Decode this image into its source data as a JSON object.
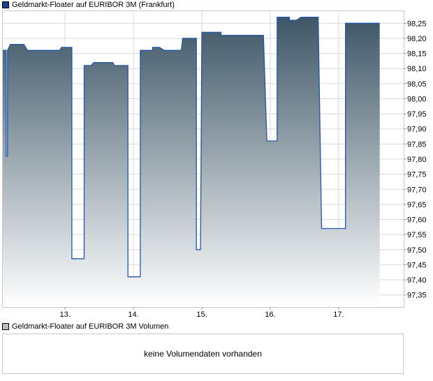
{
  "colors": {
    "series_line": "#2255aa",
    "area_top": "#3d5666",
    "area_bottom": "#ffffff",
    "grid": "#d8d8d8",
    "frame": "#c8c8c8",
    "price_swatch": "#1a3f8f",
    "volume_swatch": "#bbbbbb"
  },
  "volume_panel": {
    "legend": "Geldmarkt-Floater auf EURIBOR 3M Volumen",
    "message": "keine Volumendaten vorhanden"
  },
  "chart_data": {
    "type": "area",
    "legend": "Geldmarkt-Floater auf EURIBOR 3M (Frankfurt)",
    "x_tick_labels": [
      "13.",
      "14.",
      "15.",
      "16.",
      "17."
    ],
    "y_tick_labels": [
      "98,25",
      "98,20",
      "98,15",
      "98,10",
      "98,05",
      "98,00",
      "97,95",
      "97,90",
      "97,85",
      "97,80",
      "97,75",
      "97,70",
      "97,65",
      "97,60",
      "97,55",
      "97,50",
      "97,45",
      "97,40",
      "97,35"
    ],
    "ylim": [
      97.31,
      98.29
    ],
    "xlim": [
      12.08,
      17.95
    ],
    "grid": true,
    "x": [
      12.08,
      12.14,
      12.14,
      12.16,
      12.16,
      12.2,
      12.2,
      12.4,
      12.45,
      12.9,
      12.92,
      12.95,
      12.97,
      13.1,
      13.1,
      13.28,
      13.28,
      13.38,
      13.42,
      13.7,
      13.72,
      13.92,
      13.92,
      14.1,
      14.1,
      14.28,
      14.28,
      14.38,
      14.45,
      14.7,
      14.72,
      14.92,
      14.92,
      14.98,
      15.0,
      15.1,
      15.1,
      15.28,
      15.28,
      15.9,
      15.95,
      16.1,
      16.1,
      16.28,
      16.28,
      16.38,
      16.45,
      16.7,
      16.75,
      17.1,
      17.1,
      17.28,
      17.28,
      17.6
    ],
    "y": [
      98.16,
      98.16,
      97.81,
      97.81,
      98.16,
      98.18,
      98.18,
      98.18,
      98.16,
      98.16,
      98.16,
      98.17,
      98.17,
      98.17,
      97.47,
      97.47,
      98.11,
      98.11,
      98.12,
      98.12,
      98.11,
      98.11,
      97.41,
      97.41,
      98.16,
      98.16,
      98.17,
      98.17,
      98.16,
      98.16,
      98.2,
      98.2,
      97.5,
      97.5,
      98.22,
      98.22,
      98.22,
      98.22,
      98.21,
      98.21,
      97.86,
      97.86,
      98.27,
      98.27,
      98.26,
      98.26,
      98.27,
      98.27,
      97.57,
      97.57,
      98.25,
      98.25,
      98.25,
      98.25
    ]
  }
}
